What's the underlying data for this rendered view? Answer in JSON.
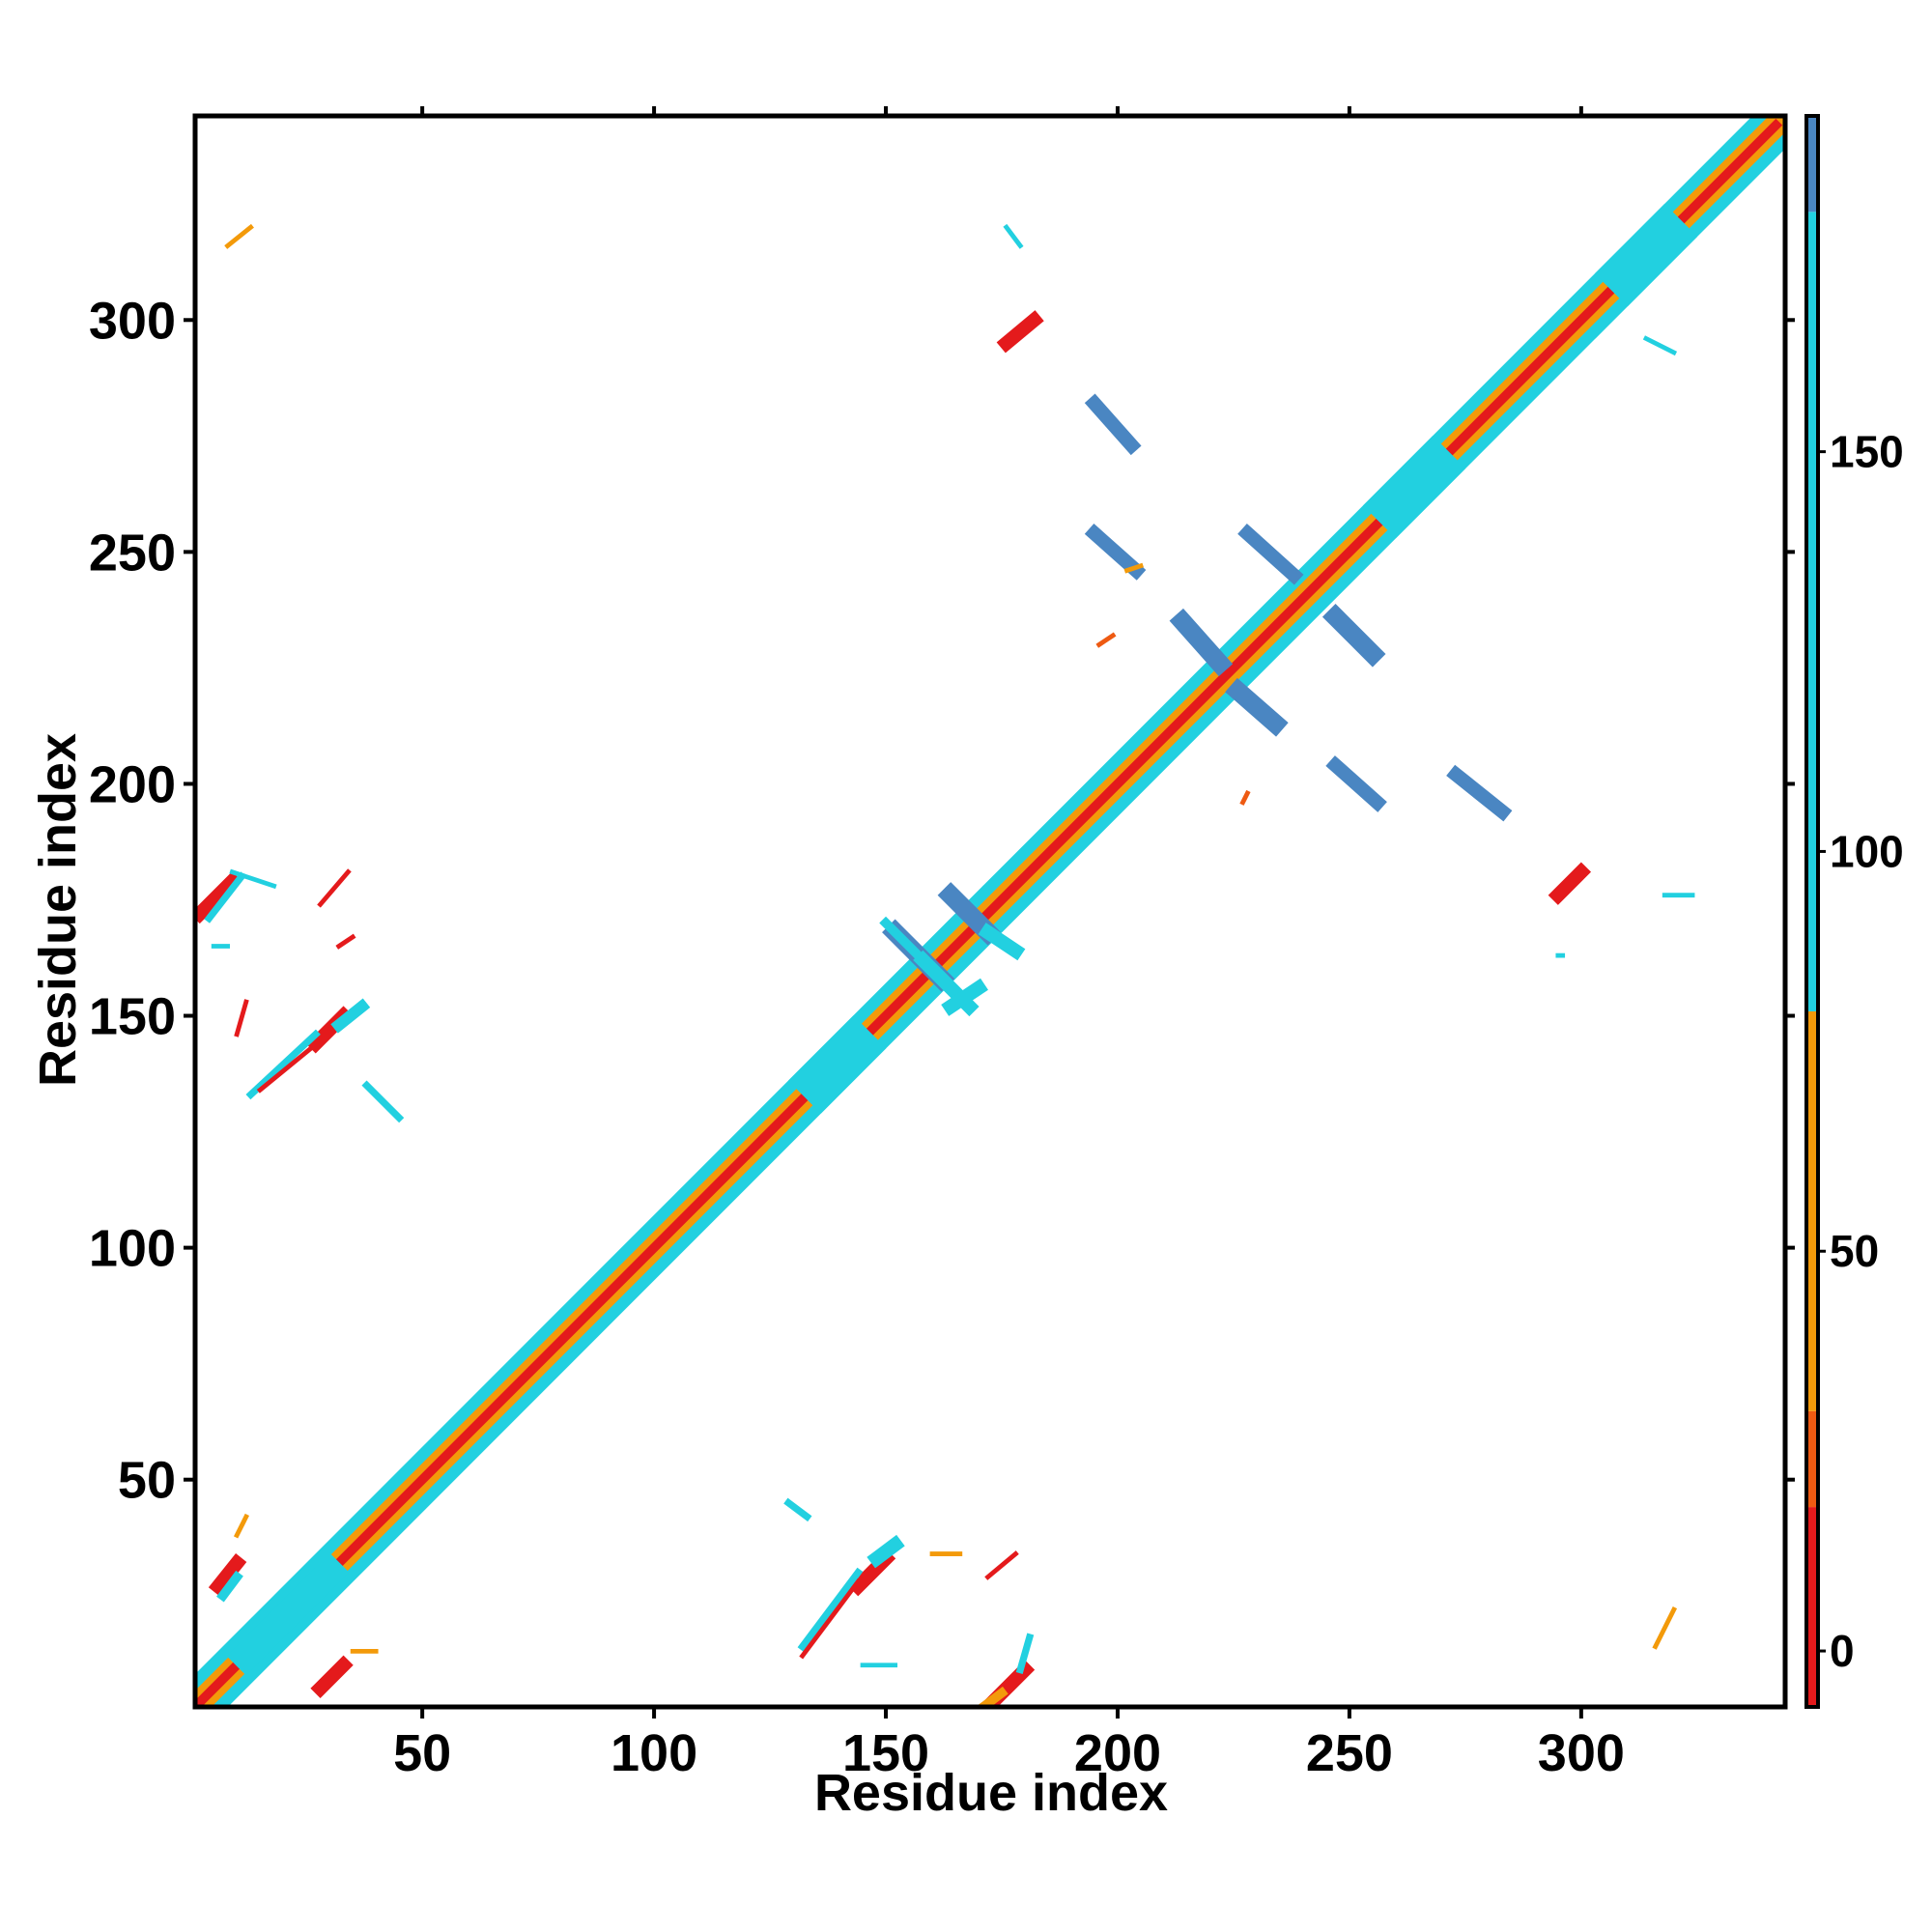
{
  "chart_data": {
    "type": "heatmap",
    "title": "",
    "xlabel": "Residue index",
    "ylabel": "Residue index",
    "xlim": [
      1,
      344
    ],
    "ylim": [
      1,
      344
    ],
    "xticks": [
      50,
      100,
      150,
      200,
      250,
      300
    ],
    "yticks": [
      50,
      100,
      150,
      200,
      250,
      300
    ],
    "grid": false,
    "colorbar": {
      "range": [
        -7,
        192
      ],
      "ticks": [
        0,
        50,
        100,
        150
      ],
      "bands": [
        {
          "from": -7,
          "to": 18,
          "color": "#e41a1c"
        },
        {
          "from": 18,
          "to": 30,
          "color": "#ee5a12"
        },
        {
          "from": 30,
          "to": 80,
          "color": "#f39a0a"
        },
        {
          "from": 80,
          "to": 180,
          "color": "#22d0e0"
        },
        {
          "from": 180,
          "to": 192,
          "color": "#4a86c2"
        }
      ],
      "top_color": "#ffffff"
    },
    "colors": {
      "red": "#e41a1c",
      "orange_red": "#ee5a12",
      "orange": "#f39a0a",
      "cyan": "#22d0e0",
      "steel_blue": "#4a86c2"
    },
    "diagonal": {
      "from": 1,
      "to": 344
    },
    "segments": [
      {
        "x1": 2,
        "y1": 2,
        "x2": 342,
        "y2": 342,
        "w": 10,
        "color": "#22d0e0"
      },
      {
        "x1": 2,
        "y1": 2,
        "x2": 342,
        "y2": 342,
        "w": 5,
        "color": "#f39a0a"
      },
      {
        "x1": 2,
        "y1": 2,
        "x2": 342,
        "y2": 342,
        "w": 2,
        "color": "#e41a1c"
      },
      {
        "x1": 6,
        "y1": 27,
        "x2": 10,
        "y2": 32,
        "w": 3,
        "color": "#e41a1c"
      },
      {
        "x1": 7,
        "y1": 25,
        "x2": 10,
        "y2": 29,
        "w": 2,
        "color": "#22d0e0"
      },
      {
        "x1": 28,
        "y1": 5,
        "x2": 33,
        "y2": 10,
        "w": 3,
        "color": "#e41a1c"
      },
      {
        "x1": 12,
        "y1": 12,
        "x2": 30,
        "y2": 30,
        "w": 6,
        "color": "#22d0e0"
      },
      {
        "x1": 35,
        "y1": 13,
        "x2": 40,
        "y2": 13,
        "w": 1,
        "color": "#f39a0a"
      },
      {
        "x1": 10,
        "y1": 38,
        "x2": 12,
        "y2": 42,
        "w": 1,
        "color": "#f39a0a"
      },
      {
        "x1": 144,
        "y1": 27,
        "x2": 150,
        "y2": 33,
        "w": 3,
        "color": "#e41a1c"
      },
      {
        "x1": 148,
        "y1": 33,
        "x2": 152,
        "y2": 36,
        "w": 3,
        "color": "#22d0e0"
      },
      {
        "x1": 132,
        "y1": 14,
        "x2": 144,
        "y2": 30,
        "w": 1.5,
        "color": "#22d0e0"
      },
      {
        "x1": 132,
        "y1": 12,
        "x2": 144,
        "y2": 28,
        "w": 1,
        "color": "#e41a1c"
      },
      {
        "x1": 129,
        "y1": 45,
        "x2": 133,
        "y2": 42,
        "w": 1.5,
        "color": "#22d0e0"
      },
      {
        "x1": 145,
        "y1": 10,
        "x2": 152,
        "y2": 10,
        "w": 1,
        "color": "#22d0e0"
      },
      {
        "x1": 173,
        "y1": 2,
        "x2": 180,
        "y2": 9,
        "w": 3,
        "color": "#e41a1c"
      },
      {
        "x1": 171,
        "y1": 1,
        "x2": 175,
        "y2": 4,
        "w": 2,
        "color": "#f39a0a"
      },
      {
        "x1": 179,
        "y1": 9,
        "x2": 181,
        "y2": 16,
        "w": 1.5,
        "color": "#22d0e0"
      },
      {
        "x1": 172,
        "y1": 29,
        "x2": 178,
        "y2": 34,
        "w": 1,
        "color": "#e41a1c"
      },
      {
        "x1": 160,
        "y1": 34,
        "x2": 166,
        "y2": 34,
        "w": 1,
        "color": "#f39a0a"
      },
      {
        "x1": 316,
        "y1": 14,
        "x2": 320,
        "y2": 22,
        "w": 1,
        "color": "#f39a0a"
      },
      {
        "x1": 2,
        "y1": 172,
        "x2": 9,
        "y2": 179,
        "w": 3,
        "color": "#e41a1c"
      },
      {
        "x1": 4,
        "y1": 171,
        "x2": 11,
        "y2": 180,
        "w": 1.5,
        "color": "#22d0e0"
      },
      {
        "x1": 9,
        "y1": 181,
        "x2": 18,
        "y2": 178,
        "w": 1,
        "color": "#22d0e0"
      },
      {
        "x1": 5,
        "y1": 165,
        "x2": 8,
        "y2": 165,
        "w": 1,
        "color": "#22d0e0"
      },
      {
        "x1": 27,
        "y1": 144,
        "x2": 33,
        "y2": 150,
        "w": 3,
        "color": "#e41a1c"
      },
      {
        "x1": 32,
        "y1": 148,
        "x2": 37,
        "y2": 152,
        "w": 2.5,
        "color": "#22d0e0"
      },
      {
        "x1": 13,
        "y1": 133,
        "x2": 27,
        "y2": 146,
        "w": 1.5,
        "color": "#22d0e0"
      },
      {
        "x1": 15,
        "y1": 134,
        "x2": 26,
        "y2": 143,
        "w": 1,
        "color": "#e41a1c"
      },
      {
        "x1": 38,
        "y1": 135,
        "x2": 45,
        "y2": 128,
        "w": 1.5,
        "color": "#22d0e0"
      },
      {
        "x1": 10,
        "y1": 146,
        "x2": 12,
        "y2": 153,
        "w": 1,
        "color": "#e41a1c"
      },
      {
        "x1": 28,
        "y1": 174,
        "x2": 34,
        "y2": 181,
        "w": 1,
        "color": "#e41a1c"
      },
      {
        "x1": 32,
        "y1": 165,
        "x2": 35,
        "y2": 167,
        "w": 1,
        "color": "#e41a1c"
      },
      {
        "x1": 8,
        "y1": 316,
        "x2": 13,
        "y2": 320,
        "w": 1,
        "color": "#f39a0a"
      },
      {
        "x1": 176,
        "y1": 295,
        "x2": 182,
        "y2": 300,
        "w": 3,
        "color": "#e41a1c"
      },
      {
        "x1": 295,
        "y1": 176,
        "x2": 300,
        "y2": 181,
        "w": 3,
        "color": "#e41a1c"
      },
      {
        "x1": 176,
        "y1": 320,
        "x2": 179,
        "y2": 316,
        "w": 1,
        "color": "#22d0e0"
      },
      {
        "x1": 314,
        "y1": 296,
        "x2": 320,
        "y2": 293,
        "w": 1,
        "color": "#22d0e0"
      },
      {
        "x1": 318,
        "y1": 176,
        "x2": 324,
        "y2": 176,
        "w": 1,
        "color": "#22d0e0"
      },
      {
        "x1": 295,
        "y1": 163,
        "x2": 296,
        "y2": 163,
        "w": 1,
        "color": "#22d0e0"
      },
      {
        "x1": 152,
        "y1": 168,
        "x2": 162,
        "y2": 158,
        "w": 4,
        "color": "#4a86c2"
      },
      {
        "x1": 150,
        "y1": 170,
        "x2": 164,
        "y2": 156,
        "w": 2,
        "color": "#22d0e0"
      },
      {
        "x1": 168,
        "y1": 152,
        "x2": 158,
        "y2": 162,
        "w": 3,
        "color": "#22d0e0"
      },
      {
        "x1": 164,
        "y1": 176,
        "x2": 172,
        "y2": 168,
        "w": 4,
        "color": "#4a86c2"
      },
      {
        "x1": 172,
        "y1": 168,
        "x2": 178,
        "y2": 164,
        "w": 3,
        "color": "#22d0e0"
      },
      {
        "x1": 164,
        "y1": 152,
        "x2": 170,
        "y2": 156,
        "w": 3,
        "color": "#22d0e0"
      },
      {
        "x1": 136,
        "y1": 136,
        "x2": 143,
        "y2": 143,
        "w": 10,
        "color": "#22d0e0"
      },
      {
        "x1": 260,
        "y1": 260,
        "x2": 268,
        "y2": 268,
        "w": 10,
        "color": "#22d0e0"
      },
      {
        "x1": 310,
        "y1": 310,
        "x2": 318,
        "y2": 318,
        "w": 10,
        "color": "#22d0e0"
      },
      {
        "x1": 195,
        "y1": 282,
        "x2": 203,
        "y2": 273,
        "w": 3,
        "color": "#4a86c2"
      },
      {
        "x1": 195,
        "y1": 254,
        "x2": 204,
        "y2": 246,
        "w": 3,
        "color": "#4a86c2"
      },
      {
        "x1": 228,
        "y1": 254,
        "x2": 238,
        "y2": 245,
        "w": 3,
        "color": "#4a86c2"
      },
      {
        "x1": 214,
        "y1": 235,
        "x2": 222,
        "y2": 226,
        "w": 4,
        "color": "#4a86c2"
      },
      {
        "x1": 226,
        "y1": 220,
        "x2": 234,
        "y2": 213,
        "w": 4,
        "color": "#4a86c2"
      },
      {
        "x1": 247,
        "y1": 236,
        "x2": 255,
        "y2": 228,
        "w": 4,
        "color": "#4a86c2"
      },
      {
        "x1": 247,
        "y1": 204,
        "x2": 256,
        "y2": 196,
        "w": 3,
        "color": "#4a86c2"
      },
      {
        "x1": 273,
        "y1": 202,
        "x2": 283,
        "y2": 194,
        "w": 3,
        "color": "#4a86c2"
      },
      {
        "x1": 196,
        "y1": 230,
        "x2": 199,
        "y2": 232,
        "w": 1,
        "color": "#ee5a12"
      },
      {
        "x1": 227,
        "y1": 196,
        "x2": 228,
        "y2": 198,
        "w": 1,
        "color": "#ee5a12"
      },
      {
        "x1": 202,
        "y1": 246,
        "x2": 205,
        "y2": 247,
        "w": 1,
        "color": "#f39a0a"
      }
    ]
  }
}
